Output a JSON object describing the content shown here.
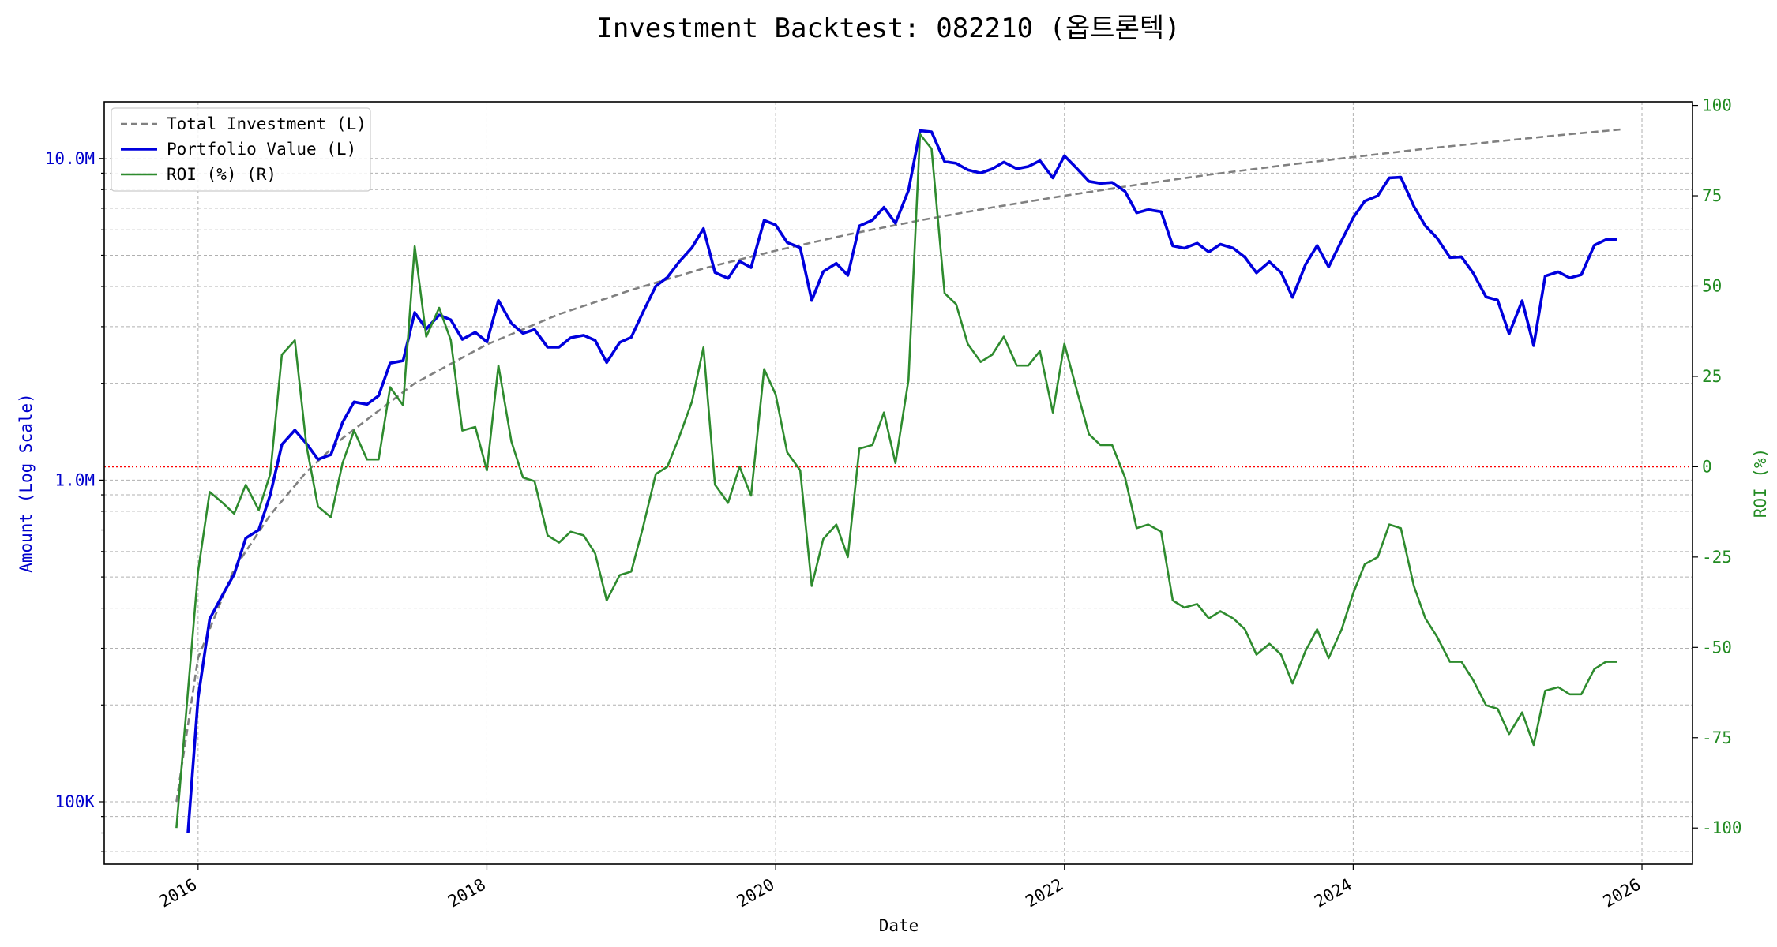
{
  "chart_data": {
    "type": "line",
    "title": "Investment Backtest: 082210 (옵트론텍)",
    "xlabel": "Date",
    "ylabel_left": "Amount (Log Scale)",
    "ylabel_right": "ROI (%)",
    "x_ticks": [
      "2016",
      "2018",
      "2020",
      "2022",
      "2024",
      "2026"
    ],
    "y_left_ticks": [
      "100K",
      "1.0M",
      "10.0M"
    ],
    "y_right_ticks": [
      "-100",
      "-75",
      "-50",
      "-25",
      "0",
      "25",
      "50",
      "75",
      "100"
    ],
    "xlim": [
      2015.35,
      2026.35
    ],
    "ylim_left": [
      64000,
      15000000
    ],
    "ylim_right": [
      -110,
      101
    ],
    "y_left_scale": "log",
    "grid": true,
    "legend_position": "top-left",
    "zero_line": {
      "axis": "right",
      "value": 0,
      "color": "#ff0000"
    },
    "colors": {
      "total_investment": "#808080",
      "portfolio_value": "#0000dd",
      "roi": "#2e8b2e",
      "left_axis": "#0000cc",
      "right_axis": "#228b22"
    },
    "series": [
      {
        "name": "Total Investment (L)",
        "axis": "left",
        "style": "dashed",
        "x": [
          2015.85,
          2016.0,
          2016.25,
          2016.5,
          2016.75,
          2017.0,
          2017.5,
          2018.0,
          2018.5,
          2019.0,
          2019.5,
          2020.0,
          2020.5,
          2021.0,
          2021.5,
          2022.0,
          2022.5,
          2023.0,
          2023.5,
          2024.0,
          2024.5,
          2025.0,
          2025.5,
          2025.85
        ],
        "y": [
          100000,
          280000,
          530000,
          780000,
          1060000,
          1350000,
          2000000,
          2640000,
          3280000,
          3900000,
          4550000,
          5170000,
          5800000,
          6420000,
          7040000,
          7660000,
          8280000,
          8900000,
          9500000,
          10100000,
          10720000,
          11300000,
          11900000,
          12300000
        ]
      },
      {
        "name": "Portfolio Value (L)",
        "axis": "left",
        "style": "solid",
        "x": [
          2015.93,
          2016.0,
          2016.08,
          2016.17,
          2016.25,
          2016.33,
          2016.42,
          2016.5,
          2016.58,
          2016.67,
          2016.75,
          2016.83,
          2016.92,
          2017.0,
          2017.08,
          2017.17,
          2017.25,
          2017.33,
          2017.42,
          2017.5,
          2017.58,
          2017.67,
          2017.75,
          2017.83,
          2017.92,
          2018.0,
          2018.08,
          2018.17,
          2018.25,
          2018.33,
          2018.42,
          2018.5,
          2018.58,
          2018.67,
          2018.75,
          2018.83,
          2018.92,
          2019.0,
          2019.08,
          2019.17,
          2019.25,
          2019.33,
          2019.42,
          2019.5,
          2019.58,
          2019.67,
          2019.75,
          2019.83,
          2019.92,
          2020.0,
          2020.08,
          2020.17,
          2020.25,
          2020.33,
          2020.42,
          2020.5,
          2020.58,
          2020.67,
          2020.75,
          2020.83,
          2020.92,
          2021.0,
          2021.08,
          2021.17,
          2021.25,
          2021.33,
          2021.42,
          2021.5,
          2021.58,
          2021.67,
          2021.75,
          2021.83,
          2021.92,
          2022.0,
          2022.08,
          2022.17,
          2022.25,
          2022.33,
          2022.42,
          2022.5,
          2022.58,
          2022.67,
          2022.75,
          2022.83,
          2022.92,
          2023.0,
          2023.08,
          2023.17,
          2023.25,
          2023.33,
          2023.42,
          2023.5,
          2023.58,
          2023.67,
          2023.75,
          2023.83,
          2023.92,
          2024.0,
          2024.08,
          2024.17,
          2024.25,
          2024.33,
          2024.42,
          2024.5,
          2024.58,
          2024.67,
          2024.75,
          2024.83,
          2024.92,
          2025.0,
          2025.08,
          2025.17,
          2025.25,
          2025.33,
          2025.42,
          2025.5,
          2025.58,
          2025.67,
          2025.75,
          2025.83
        ],
        "y": [
          80000,
          210000,
          370000,
          440000,
          510000,
          660000,
          700000,
          900000,
          1290000,
          1430000,
          1300000,
          1160000,
          1200000,
          1510000,
          1750000,
          1720000,
          1830000,
          2310000,
          2350000,
          3320000,
          2950000,
          3260000,
          3150000,
          2740000,
          2880000,
          2690000,
          3620000,
          3070000,
          2860000,
          2940000,
          2590000,
          2590000,
          2770000,
          2820000,
          2720000,
          2320000,
          2680000,
          2780000,
          3320000,
          4010000,
          4270000,
          4760000,
          5280000,
          6050000,
          4420000,
          4240000,
          4790000,
          4580000,
          6420000,
          6210000,
          5480000,
          5280000,
          3620000,
          4450000,
          4720000,
          4330000,
          6170000,
          6430000,
          7050000,
          6290000,
          7960000,
          12200000,
          12100000,
          9780000,
          9660000,
          9220000,
          9010000,
          9280000,
          9740000,
          9290000,
          9440000,
          9840000,
          8700000,
          10190000,
          9370000,
          8490000,
          8370000,
          8420000,
          7900000,
          6780000,
          6930000,
          6830000,
          5350000,
          5260000,
          5450000,
          5120000,
          5410000,
          5260000,
          4930000,
          4410000,
          4770000,
          4420000,
          3700000,
          4680000,
          5360000,
          4600000,
          5560000,
          6540000,
          7370000,
          7660000,
          8700000,
          8740000,
          7100000,
          6170000,
          5660000,
          4920000,
          4940000,
          4410000,
          3710000,
          3630000,
          2850000,
          3610000,
          2620000,
          4310000,
          4440000,
          4250000,
          4350000,
          5370000,
          5590000,
          5610000
        ]
      },
      {
        "name": "ROI (%) (R)",
        "axis": "right",
        "style": "solid",
        "x": [
          2015.85,
          2016.0,
          2016.08,
          2016.17,
          2016.25,
          2016.33,
          2016.42,
          2016.5,
          2016.58,
          2016.67,
          2016.75,
          2016.83,
          2016.92,
          2017.0,
          2017.08,
          2017.17,
          2017.25,
          2017.33,
          2017.42,
          2017.5,
          2017.58,
          2017.67,
          2017.75,
          2017.83,
          2017.92,
          2018.0,
          2018.08,
          2018.17,
          2018.25,
          2018.33,
          2018.42,
          2018.5,
          2018.58,
          2018.67,
          2018.75,
          2018.83,
          2018.92,
          2019.0,
          2019.08,
          2019.17,
          2019.25,
          2019.33,
          2019.42,
          2019.5,
          2019.58,
          2019.67,
          2019.75,
          2019.83,
          2019.92,
          2020.0,
          2020.08,
          2020.17,
          2020.25,
          2020.33,
          2020.42,
          2020.5,
          2020.58,
          2020.67,
          2020.75,
          2020.83,
          2020.92,
          2021.0,
          2021.08,
          2021.17,
          2021.25,
          2021.33,
          2021.42,
          2021.5,
          2021.58,
          2021.67,
          2021.75,
          2021.83,
          2021.92,
          2022.0,
          2022.08,
          2022.17,
          2022.25,
          2022.33,
          2022.42,
          2022.5,
          2022.58,
          2022.67,
          2022.75,
          2022.83,
          2022.92,
          2023.0,
          2023.08,
          2023.17,
          2023.25,
          2023.33,
          2023.42,
          2023.5,
          2023.58,
          2023.67,
          2023.75,
          2023.83,
          2023.92,
          2024.0,
          2024.08,
          2024.17,
          2024.25,
          2024.33,
          2024.42,
          2024.5,
          2024.58,
          2024.67,
          2024.75,
          2024.83,
          2024.92,
          2025.0,
          2025.08,
          2025.17,
          2025.25,
          2025.33,
          2025.42,
          2025.5,
          2025.58,
          2025.67,
          2025.75,
          2025.83
        ],
        "y": [
          -100,
          -29,
          -7,
          -10,
          -13,
          -5,
          -12,
          -2,
          31,
          35,
          6,
          -11,
          -14,
          1,
          10,
          2,
          2,
          22,
          17,
          61,
          36,
          44,
          35,
          10,
          11,
          -1,
          28,
          7,
          -3,
          -4,
          -19,
          -21,
          -18,
          -19,
          -24,
          -37,
          -30,
          -29,
          -17,
          -2,
          0,
          8,
          18,
          33,
          -5,
          -10,
          0,
          -8,
          27,
          20,
          4,
          -1,
          -33,
          -20,
          -16,
          -25,
          5,
          6,
          15,
          1,
          24,
          92,
          88,
          48,
          45,
          34,
          29,
          31,
          36,
          28,
          28,
          32,
          15,
          34,
          22,
          9,
          6,
          6,
          -3,
          -17,
          -16,
          -18,
          -37,
          -39,
          -38,
          -42,
          -40,
          -42,
          -45,
          -52,
          -49,
          -52,
          -60,
          -51,
          -45,
          -53,
          -45,
          -35,
          -27,
          -25,
          -16,
          -17,
          -33,
          -42,
          -47,
          -54,
          -54,
          -59,
          -66,
          -67,
          -74,
          -68,
          -77,
          -62,
          -61,
          -63,
          -63,
          -56,
          -54,
          -54
        ]
      }
    ]
  }
}
